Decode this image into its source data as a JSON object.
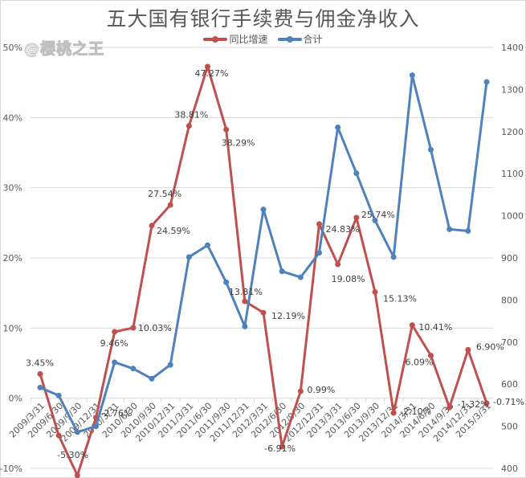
{
  "chart_data": {
    "type": "line",
    "title": "五大国有银行手续费与佣金净收入",
    "legend": [
      {
        "name": "同比增速",
        "color": "#c0504d",
        "axis": "left"
      },
      {
        "name": "合计",
        "color": "#4f81bd",
        "axis": "right"
      }
    ],
    "legend_position": "top",
    "watermark": "@樱桃之王",
    "x": [
      "2009/3/31",
      "2009/6/30",
      "2009/9/30",
      "2009/12/31",
      "2010/3/31",
      "2010/6/30",
      "2010/9/30",
      "2010/12/31",
      "2011/3/31",
      "2011/6/30",
      "2011/9/30",
      "2011/12/31",
      "2012/3/31",
      "2012/6/30",
      "2012/9/30",
      "2012/12/31",
      "2013/3/31",
      "2013/6/30",
      "2013/9/30",
      "2013/12/31",
      "2014/3/31",
      "2014/6/30",
      "2014/9/30",
      "2014/12/31",
      "2015/3/31"
    ],
    "series": [
      {
        "name": "同比增速",
        "axis": "left",
        "unit": "%",
        "values": [
          3.45,
          -5.3,
          -11.0,
          -2.76,
          9.46,
          10.03,
          24.59,
          27.54,
          38.81,
          47.27,
          38.29,
          13.81,
          12.19,
          -6.91,
          0.99,
          24.83,
          19.08,
          25.74,
          15.13,
          -2.1,
          10.41,
          6.09,
          -1.32,
          6.9,
          -0.71
        ],
        "labels": [
          "3.45%",
          "-5.30%",
          "",
          "-2.76%",
          "9.46%",
          "10.03%",
          "24.59%",
          "27.54%",
          "38.81%",
          "47.27%",
          "38.29%",
          "13.81%",
          "12.19%",
          "-6.91%",
          "0.99%",
          "24.83%",
          "19.08%",
          "25.74%",
          "15.13%",
          "-2.10%",
          "10.41%",
          "6.09%",
          "-1.32%",
          "6.90%",
          "-0.71%"
        ]
      },
      {
        "name": "合计",
        "axis": "right",
        "values": [
          592,
          573,
          486,
          500,
          652,
          637,
          613,
          646,
          902,
          930,
          842,
          737,
          1015,
          868,
          854,
          912,
          1210,
          1101,
          989,
          902,
          1334,
          1157,
          968,
          964,
          1318
        ]
      }
    ],
    "left_axis": {
      "ticks": [
        "50%",
        "40%",
        "30%",
        "20%",
        "10%",
        "0%",
        "-10%"
      ],
      "range": [
        -10,
        50
      ]
    },
    "right_axis": {
      "ticks": [
        "1400",
        "1300",
        "1200",
        "1100",
        "1000",
        "900",
        "800",
        "700",
        "600",
        "500",
        "400"
      ],
      "range": [
        400,
        1400
      ]
    },
    "grid": true,
    "xlabel": "",
    "ylabel": ""
  }
}
